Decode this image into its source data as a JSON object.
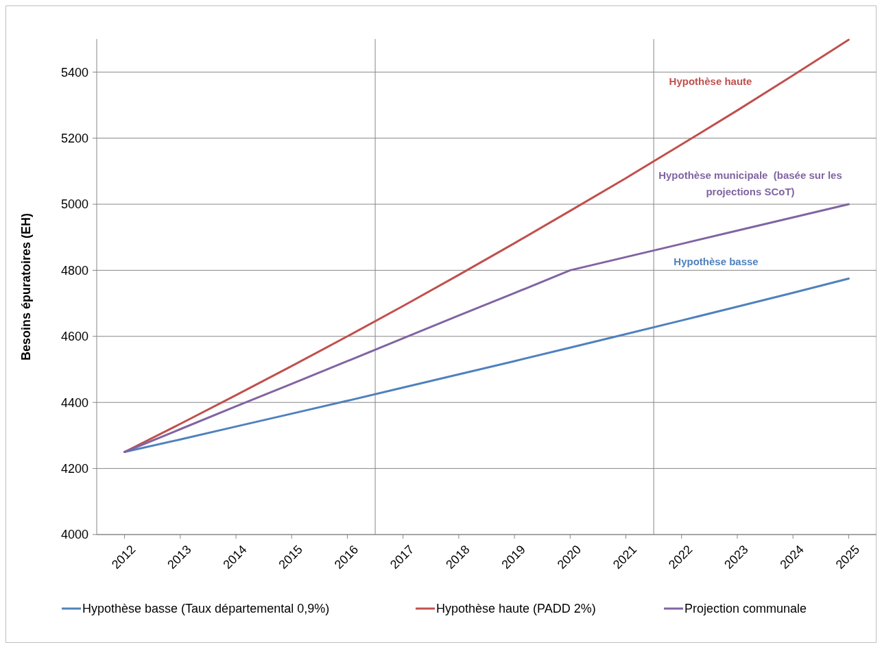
{
  "chart_data": {
    "type": "line",
    "ylabel": "Besoins épuratoires (EH)",
    "x": [
      2012,
      2013,
      2014,
      2015,
      2016,
      2017,
      2018,
      2019,
      2020,
      2021,
      2022,
      2023,
      2024,
      2025
    ],
    "xlim": [
      2011.5,
      2025.5
    ],
    "xticks": [
      2012,
      2013,
      2014,
      2015,
      2016,
      2017,
      2018,
      2019,
      2020,
      2021,
      2022,
      2023,
      2024,
      2025
    ],
    "ylim": [
      4000,
      5500
    ],
    "yticks": [
      4000,
      4200,
      4400,
      4600,
      4800,
      5000,
      5200,
      5400
    ],
    "grid": "y",
    "legend": "bottom",
    "marker": "none",
    "line_style": "solid",
    "ref_lines": [
      {
        "axis": "x",
        "value": 2016.5,
        "color": "#868686"
      },
      {
        "axis": "x",
        "value": 2021.5,
        "color": "#868686"
      }
    ],
    "series": [
      {
        "name": "Hypothèse basse (Taux départemental 0,9%)",
        "color": "#4f81bd",
        "values": [
          4250,
          4288,
          4327,
          4366,
          4405,
          4445,
          4485,
          4525,
          4566,
          4607,
          4648,
          4690,
          4732,
          4775
        ]
      },
      {
        "name": "Hypothèse haute (PADD 2%)",
        "color": "#c0504d",
        "values": [
          4250,
          4335,
          4422,
          4510,
          4600,
          4692,
          4786,
          4882,
          4980,
          5079,
          5181,
          5284,
          5390,
          5498
        ]
      },
      {
        "name": "Projection communale",
        "color": "#8064a2",
        "values": [
          4250,
          4319,
          4388,
          4456,
          4525,
          4594,
          4663,
          4731,
          4800,
          4840,
          4880,
          4920,
          4960,
          5000
        ]
      }
    ],
    "annotations": [
      "Hypothèse haute",
      "Hypothèse municipale  (basée sur les\nprojections SCoT)",
      "Hypothèse basse"
    ]
  }
}
